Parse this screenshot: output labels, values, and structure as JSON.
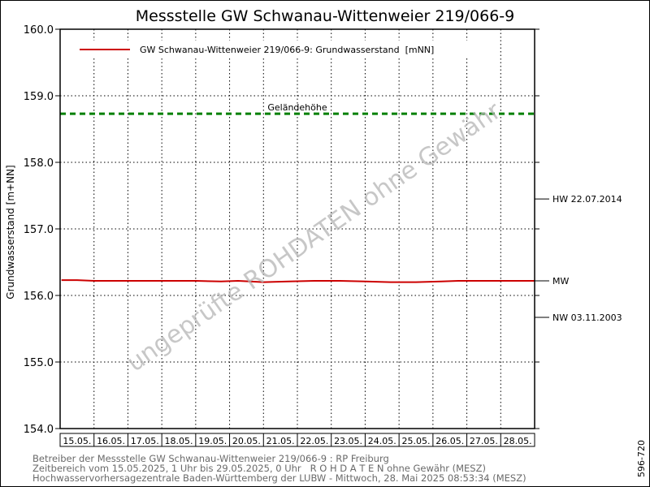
{
  "chart_data": {
    "type": "line",
    "title": "Messstelle GW Schwanau-Wittenweier 219/066-9",
    "ylabel": "Grundwasserstand [m+NN]",
    "xlabel": "",
    "ylim": [
      154.0,
      160.0
    ],
    "yticks": [
      154.0,
      155.0,
      156.0,
      157.0,
      158.0,
      159.0,
      160.0
    ],
    "ytick_labels": [
      "154.0",
      "155.0",
      "156.0",
      "157.0",
      "158.0",
      "159.0",
      "160.0"
    ],
    "xlim": [
      "2025-05-15",
      "2025-05-29"
    ],
    "categories": [
      "15.05.",
      "16.05.",
      "17.05.",
      "18.05.",
      "19.05.",
      "20.05.",
      "21.05.",
      "22.05.",
      "23.05.",
      "24.05.",
      "25.05.",
      "26.05.",
      "27.05.",
      "28.05."
    ],
    "grid": true,
    "legend_position": "top-left",
    "series": [
      {
        "name": "GW Schwanau-Wittenweier 219/066-9: Grundwasserstand  [mNN]",
        "color": "#cc0000",
        "x": [
          "2025-05-15 01:00",
          "2025-05-15 12:00",
          "2025-05-16 00:00",
          "2025-05-17 00:00",
          "2025-05-18 00:00",
          "2025-05-19 00:00",
          "2025-05-19 18:00",
          "2025-05-20 06:00",
          "2025-05-21 00:00",
          "2025-05-21 18:00",
          "2025-05-22 12:00",
          "2025-05-23 06:00",
          "2025-05-24 00:00",
          "2025-05-24 18:00",
          "2025-05-25 12:00",
          "2025-05-26 06:00",
          "2025-05-26 18:00",
          "2025-05-27 12:00",
          "2025-05-28 06:00",
          "2025-05-29 00:00"
        ],
        "values": [
          156.23,
          156.23,
          156.22,
          156.22,
          156.22,
          156.22,
          156.21,
          156.22,
          156.2,
          156.21,
          156.22,
          156.22,
          156.21,
          156.2,
          156.2,
          156.21,
          156.22,
          156.22,
          156.22,
          156.22
        ]
      }
    ],
    "reference_lines": [
      {
        "label": "Geländehöhe",
        "value": 158.73,
        "color": "#008000",
        "style": "dashed"
      }
    ],
    "right_markers": [
      {
        "label": "HW 22.07.2014",
        "value": 157.45
      },
      {
        "label": "MW",
        "value": 156.22
      },
      {
        "label": "NW 03.11.2003",
        "value": 155.67
      }
    ],
    "watermark": "ungeprüfte ROHDATEN ohne Gewähr"
  },
  "footer": {
    "line1": "Betreiber der Messstelle GW Schwanau-Wittenweier 219/066-9 : RP Freiburg",
    "line2": "Zeitbereich vom 15.05.2025, 1 Uhr bis 29.05.2025, 0 Uhr   R O H D A T E N ohne Gewähr (MESZ)",
    "line3": "Hochwasservorhersagezentrale Baden-Württemberg der LUBW - Mittwoch, 28. Mai 2025 08:53:34 (MESZ)",
    "side_code": "596-720"
  }
}
